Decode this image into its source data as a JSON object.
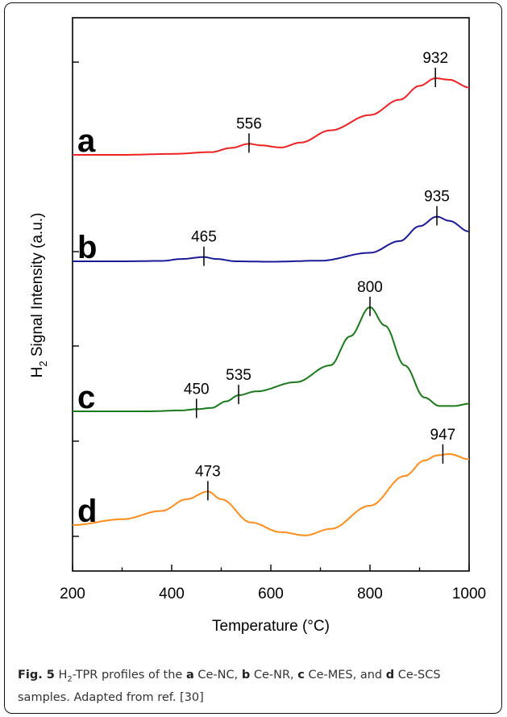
{
  "chart_data": {
    "type": "line",
    "title": "",
    "xlabel": "Temperature (°C)",
    "ylabel_main": "H",
    "ylabel_sub": "2",
    "ylabel_rest": " Signal Intensity (a.u.)",
    "xlim": [
      200,
      1000
    ],
    "xticks": [
      200,
      400,
      600,
      800,
      1000
    ],
    "grid": false,
    "legend": "none",
    "series": [
      {
        "label": "a",
        "color": "#ee2222",
        "points": [
          [
            200,
            0.0
          ],
          [
            300,
            0.0
          ],
          [
            400,
            0.06
          ],
          [
            480,
            0.18
          ],
          [
            520,
            0.45
          ],
          [
            556,
            0.72
          ],
          [
            580,
            0.62
          ],
          [
            620,
            0.48
          ],
          [
            660,
            0.8
          ],
          [
            720,
            1.6
          ],
          [
            800,
            2.6
          ],
          [
            860,
            3.6
          ],
          [
            900,
            4.5
          ],
          [
            932,
            5.0
          ],
          [
            960,
            4.9
          ],
          [
            1000,
            4.4
          ]
        ],
        "peaks": [
          {
            "x": 556,
            "label": "556"
          },
          {
            "x": 932,
            "label": "932"
          }
        ]
      },
      {
        "label": "b",
        "color": "#1a1a99",
        "points": [
          [
            200,
            0.0
          ],
          [
            300,
            0.0
          ],
          [
            380,
            0.04
          ],
          [
            420,
            0.22
          ],
          [
            465,
            0.4
          ],
          [
            490,
            0.22
          ],
          [
            530,
            0.0
          ],
          [
            600,
            -0.04
          ],
          [
            700,
            0.06
          ],
          [
            800,
            0.8
          ],
          [
            860,
            1.9
          ],
          [
            900,
            3.3
          ],
          [
            935,
            4.2
          ],
          [
            960,
            3.8
          ],
          [
            1000,
            2.8
          ]
        ],
        "peaks": [
          {
            "x": 465,
            "label": "465"
          },
          {
            "x": 935,
            "label": "935"
          }
        ]
      },
      {
        "label": "c",
        "color": "#1a7a1a",
        "points": [
          [
            200,
            0.0
          ],
          [
            350,
            0.0
          ],
          [
            420,
            0.06
          ],
          [
            450,
            0.14
          ],
          [
            480,
            0.22
          ],
          [
            510,
            0.65
          ],
          [
            535,
            1.05
          ],
          [
            570,
            1.3
          ],
          [
            650,
            1.9
          ],
          [
            720,
            3.0
          ],
          [
            760,
            4.9
          ],
          [
            800,
            6.8
          ],
          [
            830,
            5.6
          ],
          [
            870,
            3.0
          ],
          [
            910,
            0.9
          ],
          [
            940,
            0.35
          ],
          [
            970,
            0.35
          ],
          [
            1000,
            0.5
          ]
        ],
        "peaks": [
          {
            "x": 450,
            "label": "450"
          },
          {
            "x": 535,
            "label": "535"
          },
          {
            "x": 800,
            "label": "800"
          }
        ]
      },
      {
        "label": "d",
        "color": "#ff8c1a",
        "points": [
          [
            200,
            0.0
          ],
          [
            300,
            0.45
          ],
          [
            380,
            1.1
          ],
          [
            430,
            2.0
          ],
          [
            473,
            2.6
          ],
          [
            500,
            2.0
          ],
          [
            560,
            0.2
          ],
          [
            620,
            -0.55
          ],
          [
            670,
            -0.8
          ],
          [
            720,
            -0.3
          ],
          [
            800,
            1.5
          ],
          [
            870,
            3.8
          ],
          [
            910,
            5.0
          ],
          [
            935,
            5.4
          ],
          [
            960,
            5.5
          ],
          [
            1000,
            5.1
          ]
        ],
        "peaks": [
          {
            "x": 473,
            "label": "473"
          },
          {
            "x": 947,
            "label": "947"
          }
        ]
      }
    ]
  },
  "caption": {
    "fig_label": "Fig. 5",
    "part1": " H",
    "part1_sub": "2",
    "part2": "-TPR profiles of the ",
    "a": "a",
    "a_text": " Ce-NC, ",
    "b": "b",
    "b_text": " Ce-NR, ",
    "c": "c",
    "c_text": " Ce-MES, and ",
    "d": "d",
    "d_text": " Ce-SCS samples. Adapted from ref. [30]"
  }
}
